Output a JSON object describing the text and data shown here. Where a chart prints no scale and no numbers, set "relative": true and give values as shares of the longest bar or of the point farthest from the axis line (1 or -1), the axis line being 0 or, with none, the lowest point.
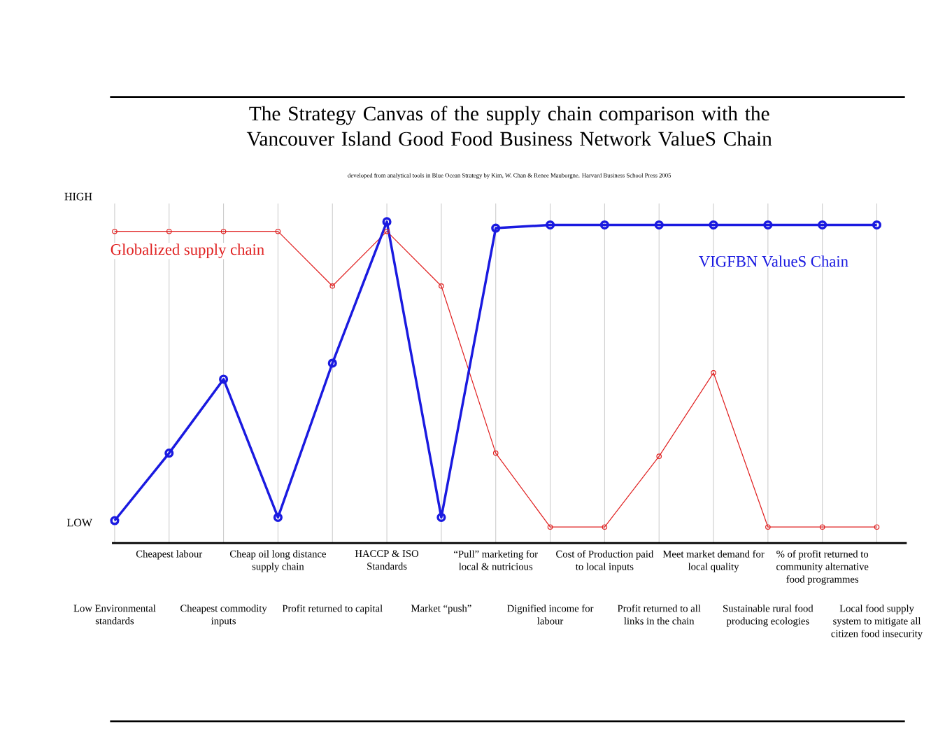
{
  "chart_data": {
    "type": "line",
    "title": "The Strategy Canvas of the supply chain comparison with the Vancouver Island Good Food Business Network ValueS Chain",
    "subtitle": "developed from analytical tools in Blue Ocean Strategy by Kim, W. Chan & Renee Mauborgne. Harvard Business School Press 2005",
    "annotations": [
      "HIGH",
      "LOW"
    ],
    "categories": [
      "Low Environmental standards",
      "Cheapest labour",
      "Cheapest commodity inputs",
      "Cheap oil long distance supply chain",
      "Profit returned to capital",
      "HACCP & ISO Standards",
      "Market “push”",
      "“Pull” marketing for local & nutricious",
      "Dignified income for labour",
      "Cost of Production paid to local inputs",
      "Profit returned to all links in the chain",
      "Meet market demand for local quality",
      "Sustainable rural food producing ecologies",
      "% of profit returned to community alternative food programmes",
      "Local food supply system to mitigate all citizen food insecurity"
    ],
    "relative": true,
    "grid": true,
    "legend": false,
    "marker": "circle",
    "line_style": "solid",
    "series": [
      {
        "name": "Globalized supply chain",
        "color": "#e02020",
        "values": [
          0.97,
          0.97,
          0.97,
          0.97,
          0.8,
          0.97,
          0.8,
          0.28,
          0.05,
          0.05,
          0.27,
          0.53,
          0.05,
          0.05,
          0.05
        ]
      },
      {
        "name": "VIGFBN ValueS Chain",
        "color": "#1a1ae0",
        "values": [
          0.07,
          0.28,
          0.51,
          0.08,
          0.56,
          1.0,
          0.08,
          0.98,
          0.99,
          0.99,
          0.99,
          0.99,
          0.99,
          0.99,
          0.99
        ]
      }
    ]
  }
}
